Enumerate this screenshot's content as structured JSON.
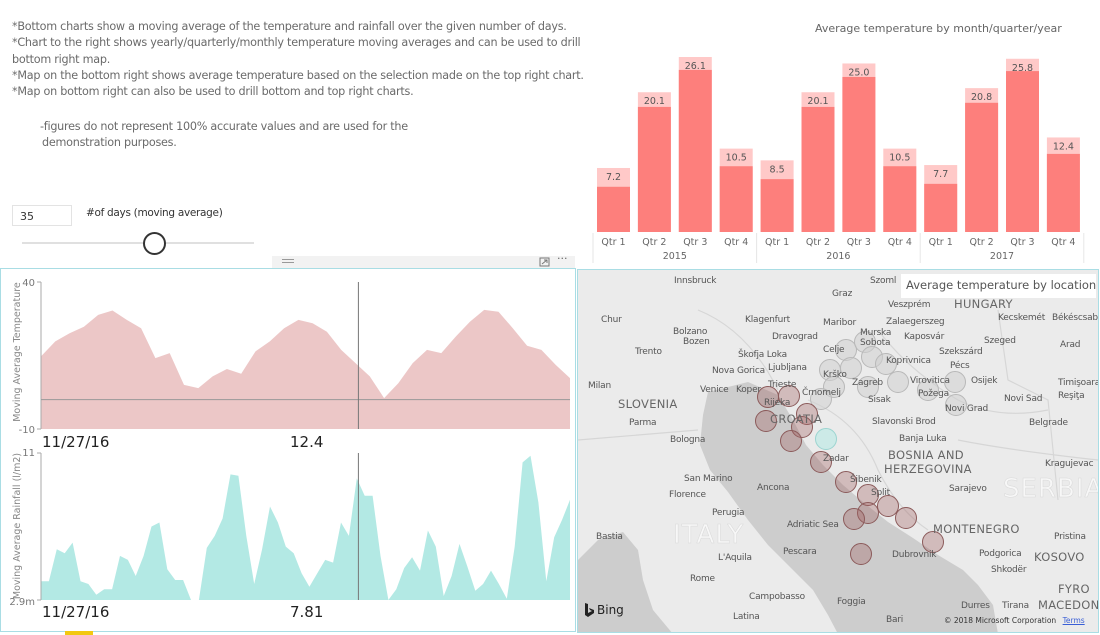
{
  "notes": {
    "lines": [
      "*Bottom charts show a moving average of the temperature and rainfall over the given number of days.",
      "*Chart to the right shows yearly/quarterly/monthly temperature moving averages and can be used to drill",
      "bottom right map.",
      "*Map on the bottom right shows average temperature based on the selection made on the top right chart.",
      "*Map on bottom right can also be used to drill bottom and top right charts."
    ],
    "disclaimer_1": "-figures do not represent 100% accurate values and are used for the",
    "disclaimer_2": "demonstration purposes."
  },
  "moving_average": {
    "days_value": "35",
    "label": "#of days (moving average)",
    "slider_fraction": 0.57
  },
  "icons": {
    "splitter": "drag-handle-icon",
    "focus": "focus-mode-icon",
    "more": "more-options-icon",
    "bing": "bing-logo"
  },
  "colors": {
    "bar": "#fd7f7c",
    "bar_highlight": "#ffc9c8",
    "temp_area": "#ecc7c7",
    "rain_area": "#b3e9e4",
    "panel_border": "#a9dde4",
    "map_bg": "#ebebeb",
    "sea": "#cdcdcd",
    "warm_bubble": "#a06060",
    "cool_bubble": "#bfe9e6"
  },
  "chart_data": [
    {
      "type": "bar",
      "title": "Average temperature by month/quarter/year",
      "categories": [
        "Qtr 1",
        "Qtr 2",
        "Qtr 3",
        "Qtr 4",
        "Qtr 1",
        "Qtr 2",
        "Qtr 3",
        "Qtr 4",
        "Qtr 1",
        "Qtr 2",
        "Qtr 3",
        "Qtr 4"
      ],
      "groups": [
        {
          "label": "2015",
          "count": 4
        },
        {
          "label": "2016",
          "count": 4
        },
        {
          "label": "2017",
          "count": 4
        }
      ],
      "values": [
        7.2,
        20.1,
        26.1,
        10.5,
        8.5,
        20.1,
        25.0,
        10.5,
        7.7,
        20.8,
        25.8,
        12.4
      ],
      "highlighted_values": [
        4.0,
        17.6,
        23.9,
        7.5,
        5.3,
        17.6,
        22.7,
        7.5,
        4.5,
        18.3,
        23.7,
        9.6
      ],
      "data_labels": [
        "7.2",
        "20.1",
        "26.1",
        "10.5",
        "8.5",
        "20.1",
        "25.0",
        "10.5",
        "7.7",
        "20.8",
        "25.8",
        "12.4"
      ],
      "ylim": [
        -3.7,
        27
      ]
    },
    {
      "type": "area",
      "ylabel": "Moving Average Temperature",
      "ylim": [
        -10,
        40
      ],
      "ytick_labels": [
        "40",
        "-10"
      ],
      "reference_line": 0,
      "cursor_date": "11/27/16",
      "cursor_value": "12.4",
      "cursor_position": 0.6,
      "values": [
        14.7,
        19.8,
        22.6,
        24.8,
        28.8,
        30.3,
        27.1,
        24.3,
        14.1,
        15.8,
        5.0,
        3.9,
        7.9,
        10.4,
        8.8,
        16.4,
        19.8,
        24.3,
        27.1,
        26.0,
        23.1,
        16.9,
        12.4,
        7.9,
        0.5,
        5.6,
        12.4,
        16.9,
        15.8,
        21.4,
        26.5,
        30.5,
        29.9,
        24.3,
        18.3,
        16.9,
        11.8,
        7.3
      ]
    },
    {
      "type": "area",
      "ylabel": "Moving Average Rainfall (l/m2)",
      "ylim": [
        0.0029,
        11
      ],
      "ytick_labels": [
        "11",
        "2.9m"
      ],
      "cursor_date": "11/27/16",
      "cursor_value": "7.81",
      "cursor_position": 0.6,
      "values": [
        1.4,
        1.4,
        3.8,
        3.5,
        4.3,
        1.4,
        1.2,
        0.4,
        0.8,
        0.8,
        3.3,
        3.0,
        1.8,
        3.3,
        5.5,
        5.8,
        2.3,
        1.5,
        1.5,
        0.0,
        0.0,
        3.9,
        4.8,
        6.1,
        9.4,
        9.3,
        4.8,
        1.2,
        3.8,
        7.0,
        5.8,
        4.0,
        3.5,
        2.0,
        1.0,
        2.0,
        3.0,
        2.8,
        5.8,
        4.8,
        9.1,
        7.8,
        7.8,
        3.3,
        0.0,
        0.8,
        2.4,
        3.2,
        2.2,
        5.2,
        4.0,
        0.3,
        1.8,
        4.2,
        2.5,
        0.7,
        1.2,
        2.2,
        1.2,
        0.1,
        4.0,
        10.3,
        10.8,
        7.3,
        1.4,
        4.7,
        6.0,
        7.5
      ]
    }
  ],
  "map": {
    "title": "Average temperature by location",
    "attribution": "© 2018 Microsoft Corporation",
    "terms": "Terms",
    "bing": "Bing",
    "labels": [
      "Innsbruck",
      "Graz",
      "Szoml",
      "Veszprém",
      "Chur",
      "Klagenfurt",
      "Maribor",
      "Zalaegerszeg",
      "Kecskemét",
      "Békéscsaba",
      "Bolzano",
      "Bozen",
      "Dravograd",
      "Murska",
      "Sobota",
      "Kaposvár",
      "Szeged",
      "Trento",
      "Škofja Loka",
      "Celje",
      "Szekszárd",
      "Arad",
      "Koprivnica",
      "Pécs",
      "Nova Gorica",
      "Ljubljana",
      "Krško",
      "Zagreb",
      "Virovitica",
      "Osijek",
      "Milan",
      "Trieste",
      "Venice",
      "Koper",
      "Črnomelj",
      "Timişoara",
      "Rijeka",
      "Požega",
      "Sisak",
      "Novi Sad",
      "Reşiţa",
      "Novi Grad",
      "Parma",
      "Slavonski Brod",
      "Belgrade",
      "Bologna",
      "Banja Luka",
      "Zadar",
      "Kragujevac",
      "San Marino",
      "Šibenik",
      "Sarajevo",
      "Ancona",
      "Florence",
      "Split",
      "Perugia",
      "Adriatic Sea",
      "Bastia",
      "Pristina",
      "Pescara",
      "L'Aquila",
      "Dubrovnik",
      "Podgorica",
      "Shkodër",
      "Rome",
      "Campobasso",
      "Foggia",
      "Durres",
      "Tirana",
      "Bari",
      "Latina"
    ],
    "countries": [
      "SLOVENIA",
      "HUNGARY",
      "CROATIA",
      "BOSNIA AND",
      "HERZEGOVINA",
      "MONTENEGRO",
      "KOSOVO",
      "FYRO",
      "MACEDONIA",
      "SAN MARINO"
    ],
    "big_countries": [
      "ITALY",
      "SERBIA"
    ]
  }
}
